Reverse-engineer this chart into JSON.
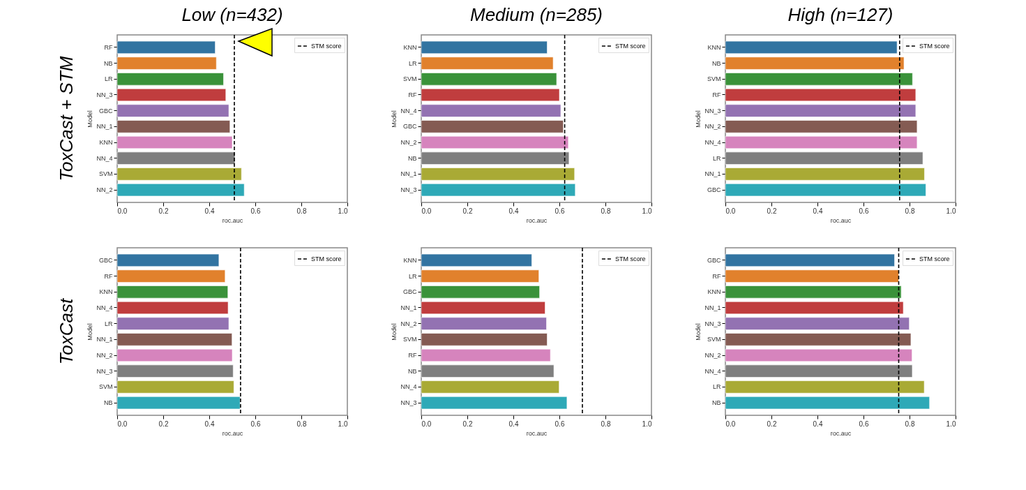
{
  "chart_data": [
    {
      "type": "bar",
      "orientation": "horizontal",
      "title": "Low (n=432)",
      "annotations": [
        "ToxCast + STM"
      ],
      "xlabel": "roc.auc",
      "ylabel": "Model",
      "categories": [
        "RF",
        "NB",
        "LR",
        "NN_3",
        "GBC",
        "NN_1",
        "KNN",
        "NN_4",
        "SVM",
        "NN_2"
      ],
      "values": [
        0.426,
        0.431,
        0.462,
        0.472,
        0.485,
        0.49,
        0.5,
        0.512,
        0.54,
        0.552
      ],
      "colors": [
        "#3274a1",
        "#e1812c",
        "#3a923a",
        "#c03d3e",
        "#9372b2",
        "#845b53",
        "#d684bd",
        "#7f7f7f",
        "#a9aa35",
        "#2ea9b7"
      ],
      "xlim": [
        0,
        1
      ],
      "xticks": [
        {
          "value": 0,
          "label": "0.0"
        },
        {
          "value": 0.2,
          "label": "0.2"
        },
        {
          "value": 0.4,
          "label": "0.4"
        },
        {
          "value": 0.6,
          "label": "0.6"
        },
        {
          "value": 0.8,
          "label": "0.8"
        },
        {
          "value": 1,
          "label": "1.0"
        }
      ],
      "ref_lines": [
        {
          "axis": "x",
          "value": 0.509,
          "label": "STM score",
          "line_style": "dashed",
          "color": "#000000"
        }
      ],
      "legend": "top right"
    },
    {
      "type": "bar",
      "orientation": "horizontal",
      "title": "Medium (n=285)",
      "xlabel": "roc.auc",
      "ylabel": "Model",
      "categories": [
        "KNN",
        "LR",
        "SVM",
        "RF",
        "NN_4",
        "GBC",
        "NN_2",
        "NB",
        "NN_1",
        "NN_3"
      ],
      "values": [
        0.547,
        0.573,
        0.588,
        0.6,
        0.606,
        0.617,
        0.639,
        0.642,
        0.666,
        0.669
      ],
      "colors": [
        "#3274a1",
        "#e1812c",
        "#3a923a",
        "#c03d3e",
        "#9372b2",
        "#845b53",
        "#d684bd",
        "#7f7f7f",
        "#a9aa35",
        "#2ea9b7"
      ],
      "xlim": [
        0,
        1
      ],
      "xticks": [
        {
          "value": 0,
          "label": "0.0"
        },
        {
          "value": 0.2,
          "label": "0.2"
        },
        {
          "value": 0.4,
          "label": "0.4"
        },
        {
          "value": 0.6,
          "label": "0.6"
        },
        {
          "value": 0.8,
          "label": "0.8"
        },
        {
          "value": 1,
          "label": "1.0"
        }
      ],
      "ref_lines": [
        {
          "axis": "x",
          "value": 0.623,
          "label": "STM score",
          "line_style": "dashed",
          "color": "#000000"
        }
      ],
      "legend": "top right"
    },
    {
      "type": "bar",
      "orientation": "horizontal",
      "title": "High (n=127)",
      "xlabel": "roc.auc",
      "ylabel": "Model",
      "categories": [
        "KNN",
        "NB",
        "SVM",
        "RF",
        "NN_3",
        "NN_2",
        "NN_4",
        "LR",
        "NN_1",
        "GBC"
      ],
      "values": [
        0.746,
        0.776,
        0.813,
        0.827,
        0.827,
        0.833,
        0.833,
        0.858,
        0.865,
        0.871
      ],
      "colors": [
        "#3274a1",
        "#e1812c",
        "#3a923a",
        "#c03d3e",
        "#9372b2",
        "#845b53",
        "#d684bd",
        "#7f7f7f",
        "#a9aa35",
        "#2ea9b7"
      ],
      "xlim": [
        0,
        1
      ],
      "xticks": [
        {
          "value": 0,
          "label": "0.0"
        },
        {
          "value": 0.2,
          "label": "0.2"
        },
        {
          "value": 0.4,
          "label": "0.4"
        },
        {
          "value": 0.6,
          "label": "0.6"
        },
        {
          "value": 0.8,
          "label": "0.8"
        },
        {
          "value": 1,
          "label": "1.0"
        }
      ],
      "ref_lines": [
        {
          "axis": "x",
          "value": 0.757,
          "label": "STM score",
          "line_style": "dashed",
          "color": "#000000"
        }
      ],
      "legend": "top right"
    },
    {
      "type": "bar",
      "orientation": "horizontal",
      "annotations": [
        "ToxCast"
      ],
      "xlabel": "roc.auc",
      "ylabel": "Model",
      "categories": [
        "GBC",
        "RF",
        "KNN",
        "NN_4",
        "LR",
        "NN_1",
        "NN_2",
        "NN_3",
        "SVM",
        "NB"
      ],
      "values": [
        0.442,
        0.469,
        0.481,
        0.482,
        0.485,
        0.499,
        0.5,
        0.504,
        0.507,
        0.534
      ],
      "colors": [
        "#3274a1",
        "#e1812c",
        "#3a923a",
        "#c03d3e",
        "#9372b2",
        "#845b53",
        "#d684bd",
        "#7f7f7f",
        "#a9aa35",
        "#2ea9b7"
      ],
      "xlim": [
        0,
        1
      ],
      "xticks": [
        {
          "value": 0,
          "label": "0.0"
        },
        {
          "value": 0.2,
          "label": "0.2"
        },
        {
          "value": 0.4,
          "label": "0.4"
        },
        {
          "value": 0.6,
          "label": "0.6"
        },
        {
          "value": 0.8,
          "label": "0.8"
        },
        {
          "value": 1,
          "label": "1.0"
        }
      ],
      "ref_lines": [
        {
          "axis": "x",
          "value": 0.536,
          "label": "STM score",
          "line_style": "dashed",
          "color": "#000000"
        }
      ],
      "legend": "top right"
    },
    {
      "type": "bar",
      "orientation": "horizontal",
      "xlabel": "roc.auc",
      "ylabel": "Model",
      "categories": [
        "KNN",
        "LR",
        "GBC",
        "NN_1",
        "NN_2",
        "SVM",
        "RF",
        "NB",
        "NN_4",
        "NN_3"
      ],
      "values": [
        0.48,
        0.511,
        0.514,
        0.538,
        0.544,
        0.547,
        0.561,
        0.576,
        0.599,
        0.633
      ],
      "colors": [
        "#3274a1",
        "#e1812c",
        "#3a923a",
        "#c03d3e",
        "#9372b2",
        "#845b53",
        "#d684bd",
        "#7f7f7f",
        "#a9aa35",
        "#2ea9b7"
      ],
      "xlim": [
        0,
        1
      ],
      "xticks": [
        {
          "value": 0,
          "label": "0.0"
        },
        {
          "value": 0.2,
          "label": "0.2"
        },
        {
          "value": 0.4,
          "label": "0.4"
        },
        {
          "value": 0.6,
          "label": "0.6"
        },
        {
          "value": 0.8,
          "label": "0.8"
        },
        {
          "value": 1,
          "label": "1.0"
        }
      ],
      "ref_lines": [
        {
          "axis": "x",
          "value": 0.7,
          "label": "STM score",
          "line_style": "dashed",
          "color": "#000000"
        }
      ],
      "legend": "top right"
    },
    {
      "type": "bar",
      "orientation": "horizontal",
      "xlabel": "roc.auc",
      "ylabel": "Model",
      "categories": [
        "GBC",
        "RF",
        "KNN",
        "NN_1",
        "NN_3",
        "SVM",
        "NN_2",
        "NN_4",
        "LR",
        "NB"
      ],
      "values": [
        0.735,
        0.753,
        0.764,
        0.773,
        0.799,
        0.806,
        0.811,
        0.812,
        0.864,
        0.887
      ],
      "colors": [
        "#3274a1",
        "#e1812c",
        "#3a923a",
        "#c03d3e",
        "#9372b2",
        "#845b53",
        "#d684bd",
        "#7f7f7f",
        "#a9aa35",
        "#2ea9b7"
      ],
      "xlim": [
        0,
        1
      ],
      "xticks": [
        {
          "value": 0,
          "label": "0.0"
        },
        {
          "value": 0.2,
          "label": "0.2"
        },
        {
          "value": 0.4,
          "label": "0.4"
        },
        {
          "value": 0.6,
          "label": "0.6"
        },
        {
          "value": 0.8,
          "label": "0.8"
        },
        {
          "value": 1,
          "label": "1.0"
        }
      ],
      "ref_lines": [
        {
          "axis": "x",
          "value": 0.753,
          "label": "STM score",
          "line_style": "dashed",
          "color": "#000000"
        }
      ],
      "legend": "top right"
    }
  ]
}
